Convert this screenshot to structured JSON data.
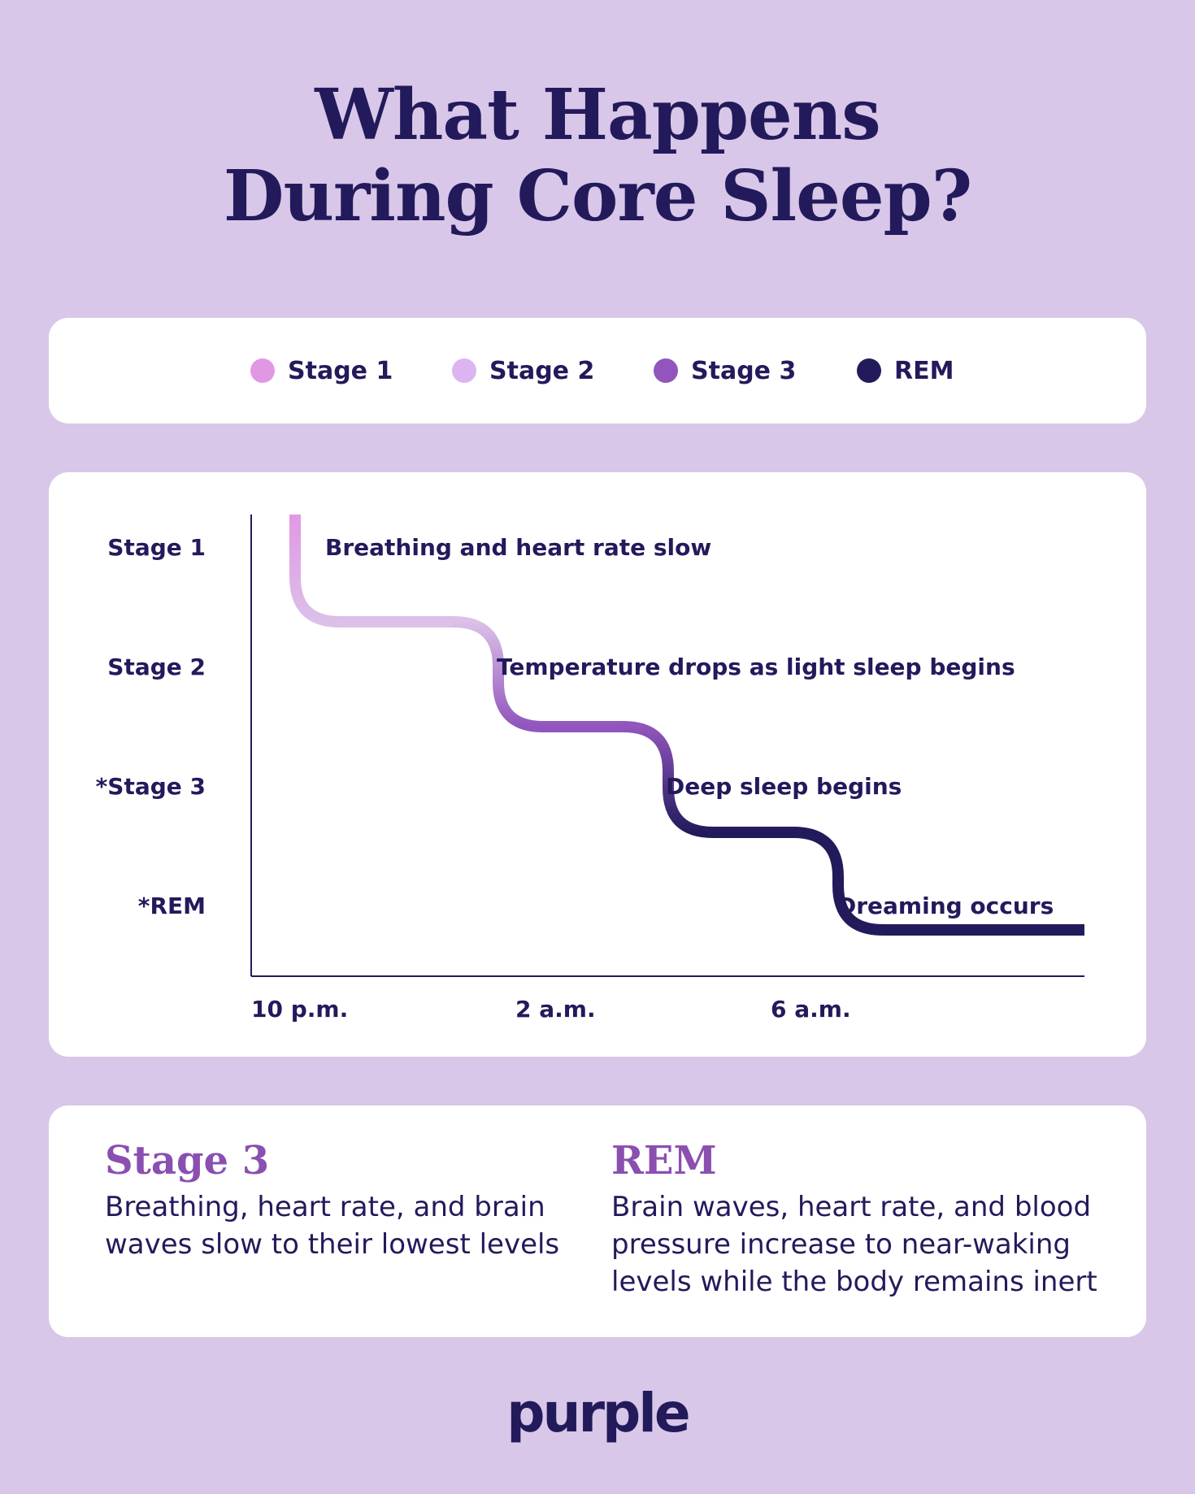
{
  "title": {
    "line1": "What Happens",
    "line2": "During Core Sleep?"
  },
  "legend": [
    {
      "label": "Stage 1",
      "color": "#e098e4"
    },
    {
      "label": "Stage 2",
      "color": "#dcb4f2"
    },
    {
      "label": "Stage 3",
      "color": "#9155bd"
    },
    {
      "label": "REM",
      "color": "#221b5b"
    }
  ],
  "chart_data": {
    "type": "line",
    "y_categories": [
      "Stage 1",
      "Stage 2",
      "*Stage 3",
      "*REM"
    ],
    "x_ticks": [
      "10 p.m.",
      "2 a.m.",
      "6 a.m."
    ],
    "steps": [
      {
        "stage": "Stage 1",
        "annotation": "Breathing and heart rate slow",
        "color": "#e098e4"
      },
      {
        "stage": "Stage 2",
        "annotation": "Temperature drops as light sleep begins",
        "color": "#dcc0e8"
      },
      {
        "stage": "*Stage 3",
        "annotation": "Deep sleep begins",
        "color": "#9155bd"
      },
      {
        "stage": "*REM",
        "annotation": "Dreaming occurs",
        "color": "#221b5b"
      }
    ],
    "grid": false,
    "legend_position": "top"
  },
  "info": [
    {
      "heading": "Stage 3",
      "lines": [
        "Breathing, heart rate, and brain",
        "waves slow to their lowest levels"
      ]
    },
    {
      "heading": "REM",
      "lines": [
        "Brain waves, heart rate, and blood",
        "pressure increase to near-waking",
        "levels while the body remains inert"
      ]
    }
  ],
  "brand": "purple"
}
